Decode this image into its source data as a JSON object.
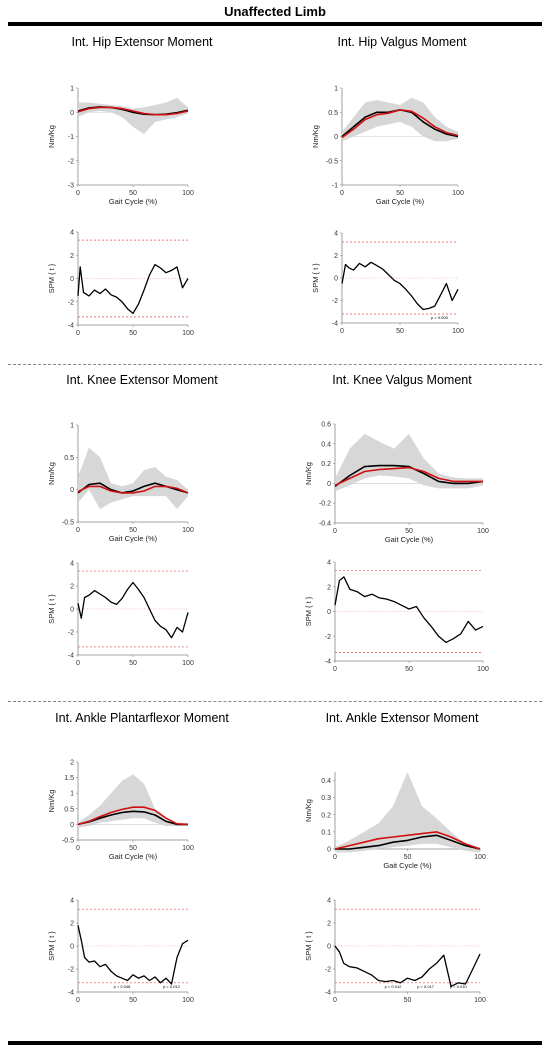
{
  "page": {
    "title": "Unaffected Limb"
  },
  "panel_titles": [
    "Int. Hip Extensor Moment",
    "Int. Hip Valgus Moment",
    "Int. Knee Extensor Moment",
    "Int. Knee Valgus Moment",
    "Int. Ankle Plantarflexor Moment",
    "Int. Ankle Extensor Moment"
  ],
  "colors": {
    "black_series": "#000000",
    "red_series": "#d01010",
    "band": "#d3d3d3",
    "threshold": "#e05050",
    "zero_line": "#e8a0a0"
  },
  "chart_data": [
    {
      "type": "line",
      "title": "Int. Hip Extensor Moment",
      "xlabel": "Gait Cycle (%)",
      "ylabel": "Nm/Kg",
      "xlim": [
        0,
        100
      ],
      "ylim": [
        -3,
        1
      ],
      "xticks": [
        "0",
        "50",
        "100"
      ],
      "yticks": [
        "-3",
        "-2",
        "-1",
        "0",
        "1"
      ],
      "x": [
        0,
        10,
        20,
        30,
        40,
        50,
        60,
        70,
        80,
        90,
        100
      ],
      "series": [
        {
          "values": [
            0.05,
            0.18,
            0.22,
            0.2,
            0.12,
            0.0,
            -0.08,
            -0.1,
            -0.08,
            -0.02,
            0.08
          ]
        },
        {
          "values": [
            0.02,
            0.15,
            0.2,
            0.2,
            0.15,
            0.05,
            -0.05,
            -0.1,
            -0.1,
            -0.05,
            0.05
          ]
        }
      ],
      "band_upper": [
        0.4,
        0.4,
        0.35,
        0.3,
        0.25,
        0.15,
        0.2,
        0.3,
        0.4,
        0.6,
        0.2
      ],
      "band_lower": [
        -0.2,
        0.0,
        0.05,
        0.0,
        -0.2,
        -0.6,
        -0.9,
        -0.4,
        -0.3,
        -0.2,
        -0.05
      ]
    },
    {
      "type": "line",
      "xlabel": "",
      "ylabel": "SPM { t }",
      "xlim": [
        0,
        100
      ],
      "ylim": [
        -4,
        4
      ],
      "xticks": [
        "0",
        "50",
        "100"
      ],
      "yticks": [
        "-4",
        "-2",
        "0",
        "2",
        "4"
      ],
      "threshold": 3.3,
      "x": [
        0,
        2,
        5,
        10,
        15,
        20,
        25,
        30,
        35,
        40,
        45,
        50,
        55,
        60,
        65,
        70,
        75,
        80,
        85,
        90,
        95,
        100
      ],
      "series": [
        {
          "values": [
            -1.5,
            1.0,
            -1.2,
            -1.5,
            -1.0,
            -1.3,
            -0.9,
            -1.4,
            -1.6,
            -2.0,
            -2.6,
            -3.0,
            -2.2,
            -1.0,
            0.3,
            1.2,
            0.9,
            0.5,
            0.7,
            1.0,
            -0.8,
            0.0
          ]
        }
      ]
    },
    {
      "type": "line",
      "title": "Int. Hip Valgus Moment",
      "xlabel": "Gait Cycle (%)",
      "ylabel": "Nm/Kg",
      "xlim": [
        0,
        100
      ],
      "ylim": [
        -1,
        1
      ],
      "xticks": [
        "0",
        "50",
        "100"
      ],
      "yticks": [
        "-1",
        "-0.5",
        "0",
        "0.5",
        "1"
      ],
      "x": [
        0,
        10,
        20,
        30,
        40,
        50,
        60,
        70,
        80,
        90,
        100
      ],
      "series": [
        {
          "values": [
            0.0,
            0.2,
            0.4,
            0.5,
            0.5,
            0.55,
            0.5,
            0.3,
            0.15,
            0.05,
            0.0
          ]
        },
        {
          "values": [
            -0.02,
            0.15,
            0.35,
            0.45,
            0.48,
            0.55,
            0.52,
            0.38,
            0.2,
            0.08,
            0.02
          ]
        }
      ],
      "band_upper": [
        0.1,
        0.4,
        0.7,
        0.75,
        0.7,
        0.65,
        0.8,
        0.7,
        0.4,
        0.2,
        0.1
      ],
      "band_lower": [
        -0.1,
        0.0,
        0.1,
        0.2,
        0.25,
        0.3,
        0.2,
        0.0,
        -0.1,
        -0.1,
        -0.05
      ]
    },
    {
      "type": "line",
      "xlabel": "",
      "ylabel": "SPM { t }",
      "xlim": [
        0,
        100
      ],
      "ylim": [
        -4,
        4
      ],
      "xticks": [
        "0",
        "50",
        "100"
      ],
      "yticks": [
        "-4",
        "-2",
        "0",
        "2",
        "4"
      ],
      "threshold": 3.2,
      "annotations": [
        "p = 0.000"
      ],
      "x": [
        0,
        3,
        6,
        10,
        15,
        20,
        25,
        30,
        35,
        40,
        45,
        50,
        55,
        60,
        65,
        70,
        75,
        80,
        85,
        90,
        95,
        100
      ],
      "series": [
        {
          "values": [
            -0.5,
            1.2,
            0.9,
            0.7,
            1.3,
            1.0,
            1.4,
            1.1,
            0.8,
            0.3,
            -0.2,
            -0.5,
            -1.0,
            -1.6,
            -2.3,
            -2.8,
            -2.7,
            -2.5,
            -1.5,
            -0.5,
            -2.0,
            -1.0
          ]
        }
      ]
    },
    {
      "type": "line",
      "title": "Int. Knee Extensor Moment",
      "xlabel": "Gait Cycle (%)",
      "ylabel": "Nm/Kg",
      "xlim": [
        0,
        100
      ],
      "ylim": [
        -0.5,
        1
      ],
      "xticks": [
        "0",
        "50",
        "100"
      ],
      "yticks": [
        "-0.5",
        "0",
        "0.5",
        "1"
      ],
      "x": [
        0,
        10,
        20,
        30,
        40,
        50,
        60,
        70,
        80,
        90,
        100
      ],
      "series": [
        {
          "values": [
            -0.05,
            0.08,
            0.1,
            0.0,
            -0.05,
            -0.02,
            0.05,
            0.1,
            0.05,
            0.0,
            -0.05
          ]
        },
        {
          "values": [
            -0.03,
            0.05,
            0.05,
            -0.02,
            -0.05,
            -0.05,
            -0.02,
            0.05,
            0.05,
            0.02,
            -0.05
          ]
        }
      ],
      "band_upper": [
        0.2,
        0.65,
        0.5,
        0.1,
        0.05,
        0.1,
        0.3,
        0.35,
        0.2,
        0.15,
        0.0
      ],
      "band_lower": [
        -0.2,
        0.0,
        -0.3,
        -0.2,
        -0.15,
        -0.1,
        -0.1,
        -0.1,
        -0.1,
        -0.3,
        -0.1
      ]
    },
    {
      "type": "line",
      "xlabel": "",
      "ylabel": "SPM { t }",
      "xlim": [
        0,
        100
      ],
      "ylim": [
        -4,
        4
      ],
      "xticks": [
        "0",
        "50",
        "100"
      ],
      "yticks": [
        "-4",
        "-2",
        "0",
        "2",
        "4"
      ],
      "threshold": 3.3,
      "x": [
        0,
        3,
        6,
        10,
        15,
        20,
        25,
        30,
        35,
        40,
        45,
        50,
        55,
        60,
        65,
        70,
        75,
        80,
        85,
        90,
        95,
        100
      ],
      "series": [
        {
          "values": [
            0.5,
            -0.8,
            1.0,
            1.2,
            1.6,
            1.3,
            1.0,
            0.6,
            0.4,
            0.9,
            1.7,
            2.3,
            1.7,
            1.0,
            0.0,
            -1.0,
            -1.5,
            -1.8,
            -2.5,
            -1.6,
            -2.0,
            -0.3
          ]
        }
      ]
    },
    {
      "type": "line",
      "title": "Int. Knee Valgus Moment",
      "xlabel": "Gait Cycle (%)",
      "ylabel": "Nm/Kg",
      "xlim": [
        0,
        100
      ],
      "ylim": [
        -0.4,
        0.6
      ],
      "xticks": [
        "0",
        "50",
        "100"
      ],
      "yticks": [
        "-0.4",
        "-0.2",
        "0",
        "0.2",
        "0.4",
        "0.6"
      ],
      "x": [
        0,
        10,
        20,
        30,
        40,
        50,
        60,
        70,
        80,
        90,
        100
      ],
      "series": [
        {
          "values": [
            -0.03,
            0.08,
            0.17,
            0.18,
            0.18,
            0.17,
            0.1,
            0.02,
            0.0,
            0.0,
            0.02
          ]
        },
        {
          "values": [
            -0.02,
            0.05,
            0.12,
            0.14,
            0.15,
            0.16,
            0.12,
            0.05,
            0.02,
            0.02,
            0.02
          ]
        }
      ],
      "band_upper": [
        0.05,
        0.35,
        0.5,
        0.42,
        0.35,
        0.5,
        0.25,
        0.1,
        0.06,
        0.05,
        0.05
      ],
      "band_lower": [
        -0.08,
        -0.02,
        0.05,
        0.08,
        0.07,
        0.05,
        -0.02,
        -0.05,
        -0.05,
        -0.05,
        -0.02
      ]
    },
    {
      "type": "line",
      "xlabel": "",
      "ylabel": "SPM { t }",
      "xlim": [
        0,
        100
      ],
      "ylim": [
        -4,
        4
      ],
      "xticks": [
        "0",
        "50",
        "100"
      ],
      "yticks": [
        "-4",
        "-2",
        "0",
        "2",
        "4"
      ],
      "threshold": 3.3,
      "x": [
        0,
        3,
        6,
        10,
        15,
        20,
        25,
        30,
        35,
        40,
        45,
        50,
        55,
        60,
        65,
        70,
        75,
        80,
        85,
        90,
        95,
        100
      ],
      "series": [
        {
          "values": [
            0.5,
            2.5,
            2.8,
            1.8,
            1.6,
            1.2,
            1.4,
            1.1,
            1.0,
            0.8,
            0.5,
            0.2,
            0.4,
            -0.5,
            -1.2,
            -2.0,
            -2.5,
            -2.2,
            -1.8,
            -0.8,
            -1.5,
            -1.2
          ]
        }
      ]
    },
    {
      "type": "line",
      "title": "Int. Ankle Plantarflexor Moment",
      "xlabel": "Gait Cycle (%)",
      "ylabel": "Nm/Kg",
      "xlim": [
        0,
        100
      ],
      "ylim": [
        -0.5,
        2
      ],
      "xticks": [
        "0",
        "50",
        "100"
      ],
      "yticks": [
        "-0.5",
        "0",
        "0.5",
        "1",
        "1.5",
        "2"
      ],
      "x": [
        0,
        10,
        20,
        30,
        40,
        50,
        60,
        70,
        80,
        90,
        100
      ],
      "series": [
        {
          "values": [
            0.0,
            0.08,
            0.2,
            0.3,
            0.38,
            0.42,
            0.4,
            0.3,
            0.1,
            0.0,
            0.0
          ]
        },
        {
          "values": [
            0.0,
            0.1,
            0.25,
            0.38,
            0.48,
            0.55,
            0.55,
            0.45,
            0.2,
            0.02,
            0.0
          ]
        }
      ],
      "band_upper": [
        0.05,
        0.3,
        0.6,
        1.0,
        1.4,
        1.6,
        1.3,
        0.5,
        0.1,
        0.05,
        0.05
      ],
      "band_lower": [
        -0.1,
        -0.05,
        0.05,
        0.1,
        0.15,
        0.2,
        0.2,
        0.05,
        -0.05,
        -0.05,
        -0.05
      ]
    },
    {
      "type": "line",
      "xlabel": "",
      "ylabel": "SPM { t }",
      "xlim": [
        0,
        100
      ],
      "ylim": [
        -4,
        4
      ],
      "xticks": [
        "0",
        "50",
        "100"
      ],
      "yticks": [
        "-4",
        "-2",
        "0",
        "2",
        "4"
      ],
      "threshold": 3.2,
      "annotations": [
        "p = 0.048",
        "p = 0.012"
      ],
      "x": [
        0,
        3,
        6,
        10,
        15,
        20,
        25,
        30,
        35,
        40,
        45,
        50,
        55,
        60,
        65,
        70,
        75,
        80,
        85,
        90,
        95,
        100
      ],
      "series": [
        {
          "values": [
            1.8,
            0.5,
            -1.0,
            -1.4,
            -1.3,
            -1.8,
            -1.6,
            -2.2,
            -2.6,
            -2.8,
            -3.0,
            -2.5,
            -2.8,
            -2.6,
            -3.0,
            -2.7,
            -3.2,
            -2.8,
            -3.3,
            -1.0,
            0.2,
            0.5
          ]
        }
      ]
    },
    {
      "type": "line",
      "title": "Int. Ankle Extensor Moment",
      "xlabel": "Gait Cycle (%)",
      "ylabel": "Nm/Kg",
      "xlim": [
        0,
        100
      ],
      "ylim": [
        0,
        0.45
      ],
      "xticks": [
        "0",
        "50",
        "100"
      ],
      "yticks": [
        "0",
        "0.1",
        "0.2",
        "0.3",
        "0.4"
      ],
      "x": [
        0,
        10,
        20,
        30,
        40,
        50,
        60,
        70,
        80,
        90,
        100
      ],
      "series": [
        {
          "values": [
            0.0,
            0.0,
            0.01,
            0.02,
            0.04,
            0.05,
            0.07,
            0.08,
            0.05,
            0.02,
            0.0
          ]
        },
        {
          "values": [
            0.0,
            0.02,
            0.04,
            0.06,
            0.07,
            0.08,
            0.09,
            0.1,
            0.07,
            0.03,
            0.0
          ]
        }
      ],
      "band_upper": [
        0.01,
        0.05,
        0.1,
        0.15,
        0.25,
        0.45,
        0.25,
        0.18,
        0.1,
        0.03,
        0.01
      ],
      "band_lower": [
        -0.02,
        -0.02,
        -0.01,
        0.0,
        0.01,
        0.02,
        0.03,
        0.03,
        0.01,
        -0.01,
        -0.02
      ]
    },
    {
      "type": "line",
      "xlabel": "",
      "ylabel": "SPM { t }",
      "xlim": [
        0,
        100
      ],
      "ylim": [
        -4,
        4
      ],
      "xticks": [
        "0",
        "50",
        "100"
      ],
      "yticks": [
        "-4",
        "-2",
        "0",
        "2",
        "4"
      ],
      "threshold": 3.2,
      "annotations": [
        "p = 0.012",
        "p = 0.017",
        "p = 0.010"
      ],
      "x": [
        0,
        3,
        6,
        10,
        15,
        20,
        25,
        30,
        35,
        40,
        45,
        50,
        55,
        60,
        65,
        70,
        75,
        80,
        85,
        90,
        95,
        100
      ],
      "series": [
        {
          "values": [
            0.0,
            -0.5,
            -1.5,
            -1.8,
            -1.9,
            -2.2,
            -2.5,
            -3.0,
            -3.1,
            -3.0,
            -3.2,
            -2.8,
            -3.0,
            -2.7,
            -2.0,
            -1.5,
            -0.8,
            -3.5,
            -3.2,
            -3.3,
            -2.0,
            -0.7
          ]
        }
      ]
    }
  ]
}
